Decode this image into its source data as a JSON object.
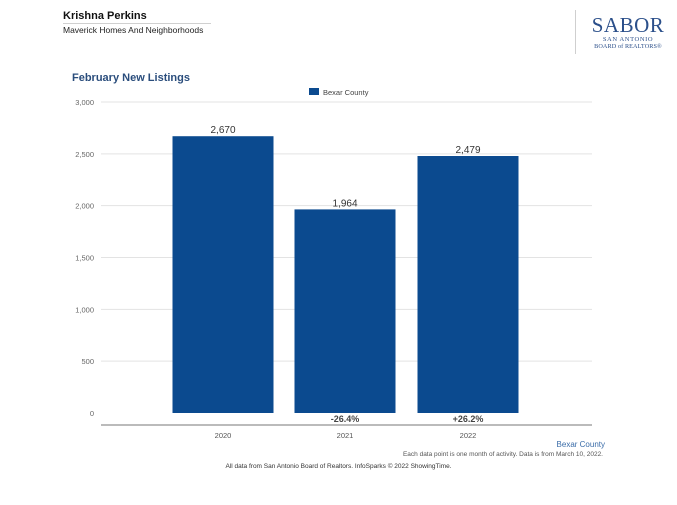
{
  "header": {
    "agent_name": "Krishna Perkins",
    "company": "Maverick Homes And Neighborhoods",
    "logo_mark": "SABOR",
    "logo_line1": "SAN ANTONIO",
    "logo_line2": "BOARD of REALTORS®"
  },
  "chart_data": {
    "type": "bar",
    "title": "February New Listings",
    "categories": [
      "2020",
      "2021",
      "2022"
    ],
    "series": [
      {
        "name": "Bexar County",
        "values": [
          2670,
          1964,
          2479
        ]
      }
    ],
    "value_labels": [
      "2,670",
      "1,964",
      "2,479"
    ],
    "change_labels": [
      "",
      "-26.4%",
      "+26.2%"
    ],
    "ylim": [
      0,
      3000
    ],
    "yticks": [
      0,
      500,
      1000,
      1500,
      2000,
      2500,
      3000
    ],
    "ytick_labels": [
      "0",
      "500",
      "1,000",
      "1,500",
      "2,000",
      "2,500",
      "3,000"
    ],
    "legend": "top-center",
    "area_label": "Bexar County",
    "grid": true,
    "bar_color": "#0b4a8f"
  },
  "footer": {
    "note": "Each data point is one month of activity. Data is from March 10, 2022.",
    "source": "All data from San Antonio Board of Realtors. InfoSparks © 2022 ShowingTime."
  }
}
